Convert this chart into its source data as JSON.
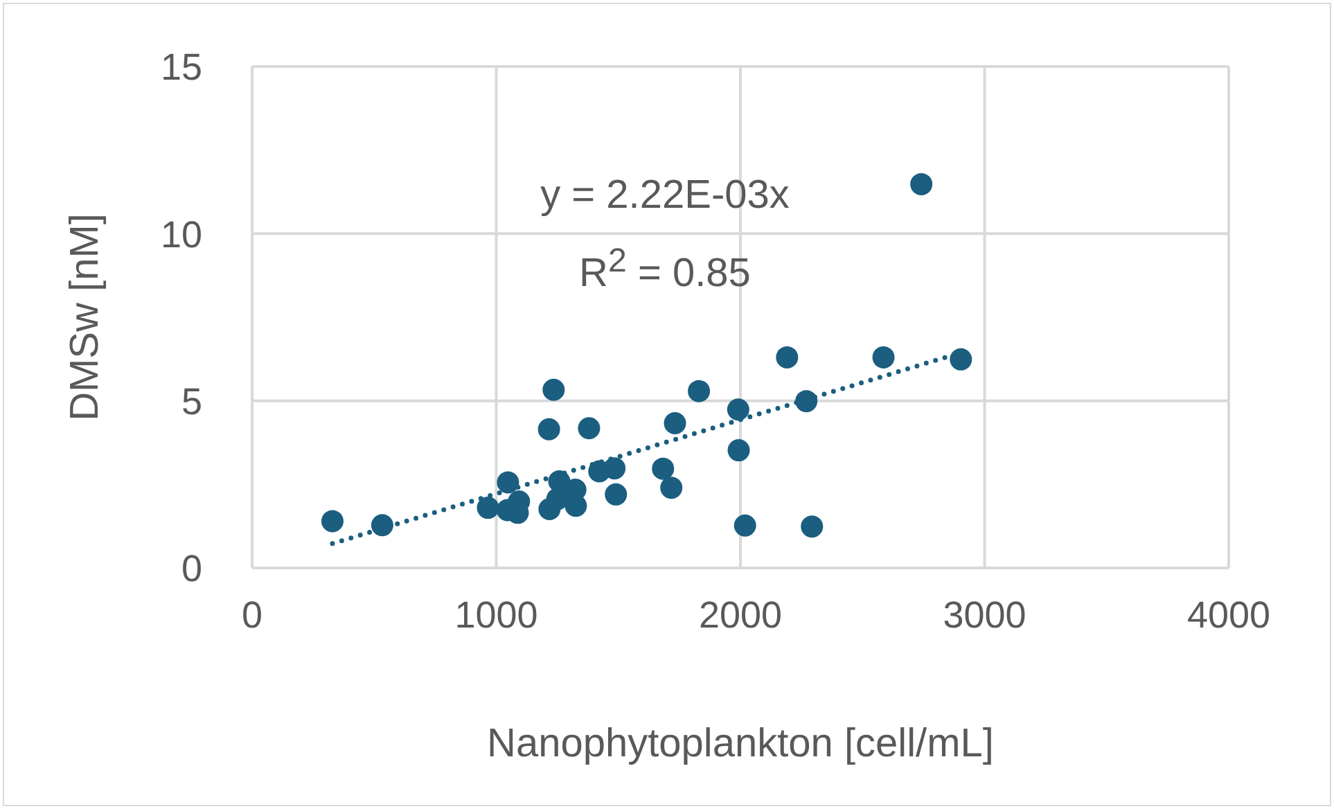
{
  "chart_data": {
    "type": "scatter",
    "xlabel": "Nanophytoplankton [cell/mL]",
    "ylabel": "DMSw [nM]",
    "xlim": [
      0,
      4000
    ],
    "xticks": [
      0,
      1000,
      2000,
      3000,
      4000
    ],
    "ylim": [
      0,
      15
    ],
    "yticks": [
      0,
      5,
      10,
      15
    ],
    "grid": true,
    "annotations": [
      "y = 2.22E-03x",
      "R$^{2}$ = 0.85"
    ],
    "series": [
      {
        "color": "#1b5e80",
        "marker": "circle",
        "x": [
          329,
          533,
          966,
          1048,
          1046,
          1093,
          1088,
          1235,
          1216,
          1380,
          1258,
          1218,
          1250,
          1324,
          1326,
          1422,
          1484,
          1490,
          1683,
          1717,
          1732,
          1830,
          2191,
          2586,
          2903,
          2270,
          1991,
          1993,
          2019,
          2293,
          2741
        ],
        "values": [
          1.4,
          1.28,
          1.8,
          2.56,
          1.73,
          1.99,
          1.65,
          5.33,
          4.15,
          4.18,
          2.59,
          1.76,
          2.06,
          2.34,
          1.86,
          2.89,
          2.98,
          2.2,
          2.97,
          2.4,
          4.33,
          5.29,
          6.3,
          6.3,
          6.24,
          4.99,
          4.74,
          3.52,
          1.27,
          1.24,
          11.48
        ]
      },
      {
        "type": "line",
        "color": "#1b5e80",
        "line_style": "dotted",
        "marker": "none",
        "x": [
          329,
          2903
        ],
        "values": [
          0.73,
          6.44
        ]
      }
    ]
  }
}
